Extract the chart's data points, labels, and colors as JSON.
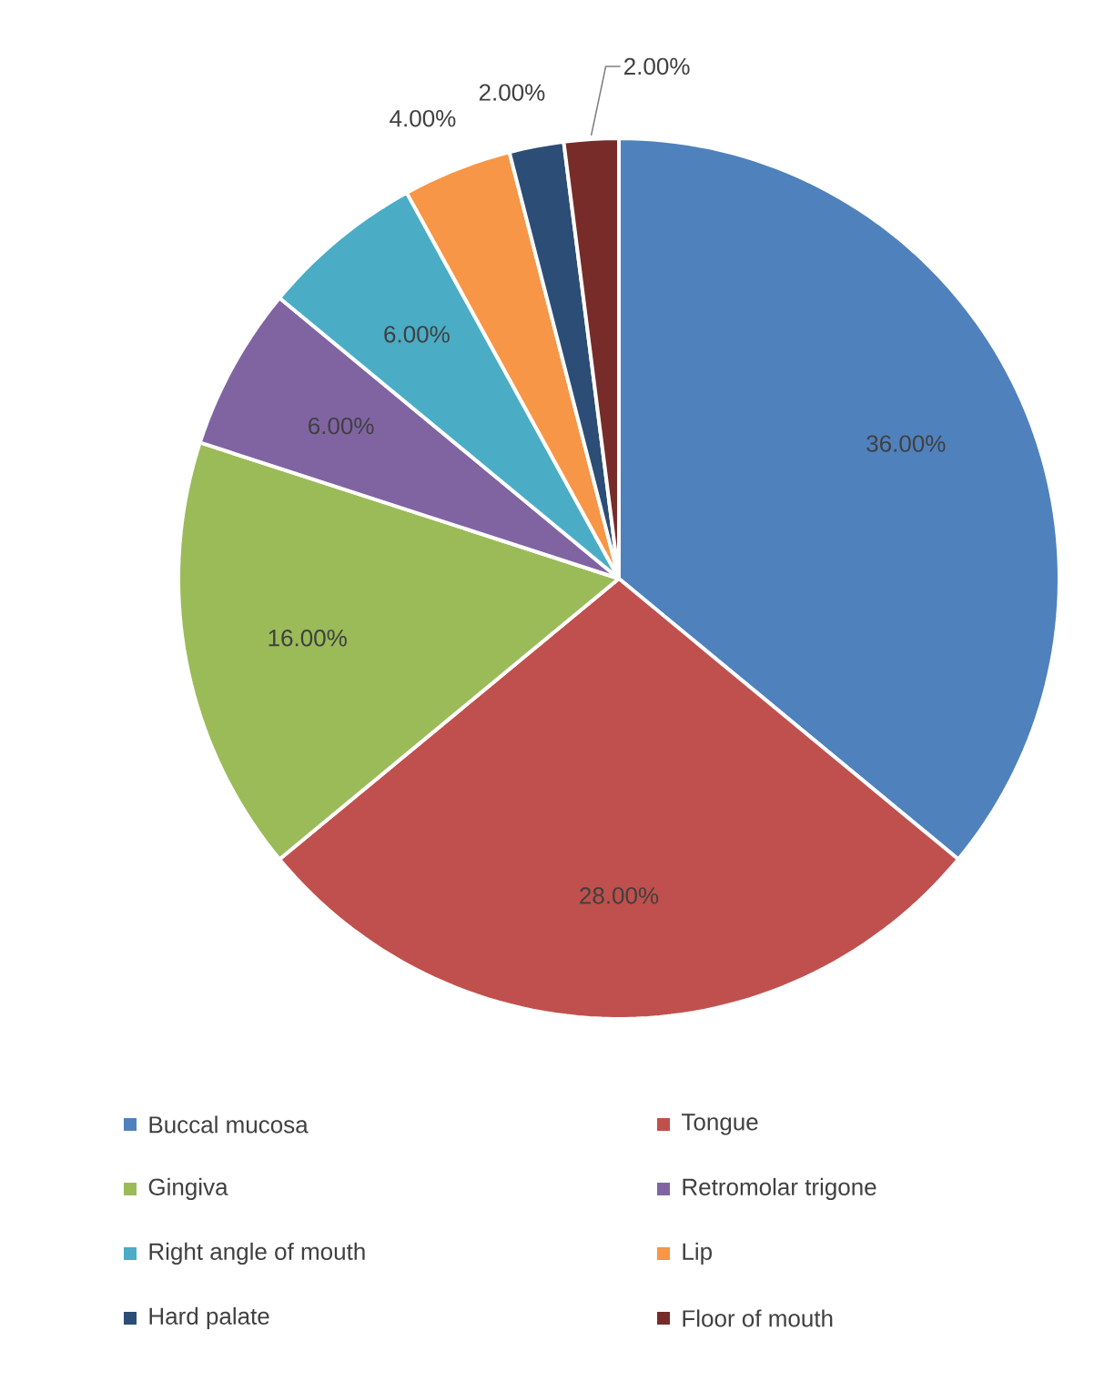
{
  "chart_data": {
    "type": "pie",
    "categories": [
      "Buccal mucosa",
      "Tongue",
      "Gingiva",
      "Retromolar trigone",
      "Right angle of mouth",
      "Lip",
      "Hard palate",
      "Floor of mouth"
    ],
    "values": [
      36,
      28,
      16,
      6,
      6,
      4,
      2,
      2
    ],
    "value_labels": [
      "36.00%",
      "28.00%",
      "16.00%",
      "6.00%",
      "6.00%",
      "4.00%",
      "2.00%",
      "2.00%"
    ],
    "colors": [
      "#4f81bd",
      "#c0504d",
      "#9bbb59",
      "#8064a2",
      "#4bacc6",
      "#f79646",
      "#2c4d75",
      "#772c2a"
    ],
    "legend": "bottom"
  }
}
